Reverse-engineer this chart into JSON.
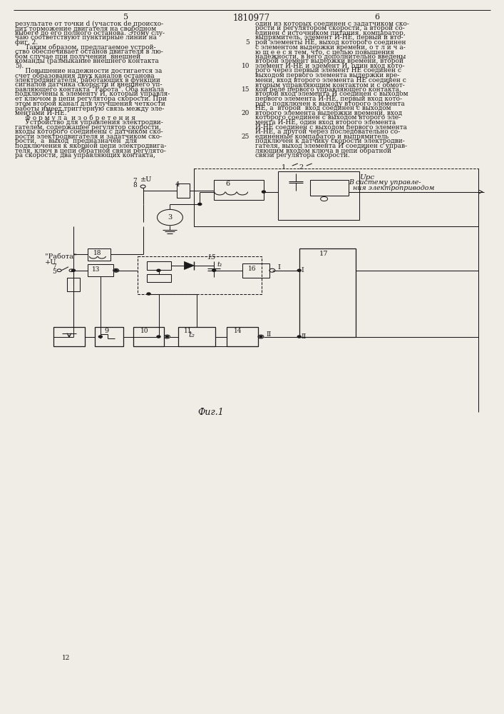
{
  "page_width": 7.07,
  "page_height": 10.0,
  "bg_color": "#f0ece6",
  "text_color": "#1a1a1a",
  "header": "1810977",
  "page_left": "5",
  "page_right": "6",
  "fig_caption": "Фиг.1",
  "left_col_lines": [
    "результате от точки d (участок de происхо-",
    "дит торможение двигателя на свободном",
    "выбеге до его полного останова. Этому слу-",
    "чаю соответствуют пунктирные линии на",
    "фиг. 2.",
    "     Таким образом, предлагаемое устрой-",
    "ство обеспечивает останов двигателя в лю-",
    "бом случае при получении  внешней",
    "команды (размыкание внешнего контакта",
    "5).",
    "     Повышение надежности достигается за",
    "счет образования двух каналов останова",
    "электродвигателя, работающих в функции",
    "сигналов датчика скорости и внешнего уп-",
    "равляющего контакта \"Работа\". Оба канала",
    "подключены к элементу И, который управля-",
    "ет ключом в цепи регулятора скорости. При",
    "этом второй канал для улучшения четкости",
    "работы имеет триггерную связь между эле-",
    "ментами И-НЕ.",
    "     Ф о р м у л а  и з о б р е т е н и я",
    "     Устройство для управления электродви-",
    "гателем, содержащее регулятор скорости,",
    "входы которого соединены с датчиком ско-",
    "рости электродвигателя и задатчиком ско-",
    "рости,  а  выход  предназначен  для",
    "подключения к якорной цепи электродвига-",
    "теля, ключ в цепи обратной связи регулято-",
    "ра скорости, два управляющих контакта,"
  ],
  "right_col_lines": [
    "один из которых соединен с задатчиком ско-",
    "рости и регулятором скорости, а второй со-",
    "единен с источником питания, компаратор,",
    "выпрямитель, элемент И-НЕ, первый и вто-",
    "рой элементы НЕ, выход которого соединен",
    "с элементом выдержки времени, о т л и ч а-",
    "ю щ е е с я тем, что, с целью повышения",
    "надежности, в него дополнительно введены",
    "второй элемент выдержки времени, второй",
    "элемент И-НЕ и элемент И, один вход кото-",
    "рого через первый элемент НЕ соединен с",
    "выходом первого элемента выдержки вре-",
    "мени, вход второго элемента НЕ соединен с",
    "вторым управляющим контактом и с обмот-",
    "кой реле первого управляющего контакта,",
    "второй вход элемента И соединен с выходом",
    "первого элемента И-НЕ, первый вход кото-",
    "рого подключен к выходу второго элемента",
    "НЕ, а  второй  вход соединен с выходом",
    "второго элемента выдержки времени, вход",
    "которого соединен с выходом второго эле-",
    "мента И-НЕ, один вход второго элемента",
    "И-НЕ соединен с выходом первого элемента",
    "И-НЕ, а другой через последовательно со-",
    "единенные компаратор и выпрямитель",
    "подключен к датчику скорости электродви-",
    "гателя, выход элемента И соединен с управ-",
    "ляющим входом ключа в цепи обратной",
    "связи регулятора скорости."
  ]
}
